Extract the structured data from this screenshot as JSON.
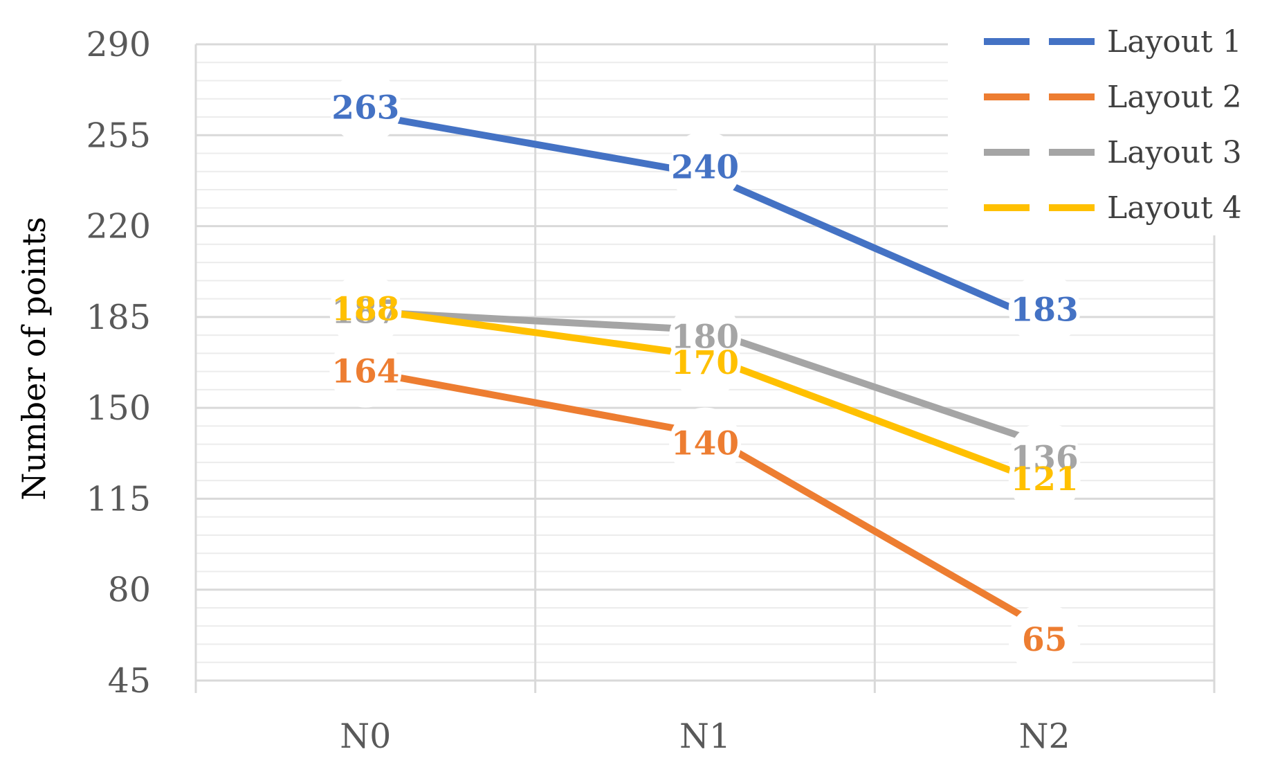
{
  "chart_data": {
    "type": "line",
    "title": "",
    "xlabel": "",
    "ylabel": "Number of points",
    "categories": [
      "N0",
      "N1",
      "N2"
    ],
    "ylim": [
      45,
      290
    ],
    "yticks": [
      45,
      80,
      115,
      150,
      185,
      220,
      255,
      290
    ],
    "grid": true,
    "legend_position": "top-right",
    "series": [
      {
        "name": "Layout 1",
        "color": "#4472C4",
        "values": [
          263,
          240,
          183
        ],
        "label_bold": true
      },
      {
        "name": "Layout 2",
        "color": "#ED7D31",
        "values": [
          164,
          140,
          65
        ],
        "label_bold": true
      },
      {
        "name": "Layout 3",
        "color": "#A5A5A5",
        "values": [
          187,
          180,
          136
        ],
        "label_bold": false
      },
      {
        "name": "Layout 4",
        "color": "#FFC000",
        "values": [
          188,
          170,
          121
        ],
        "label_bold": true
      }
    ]
  }
}
